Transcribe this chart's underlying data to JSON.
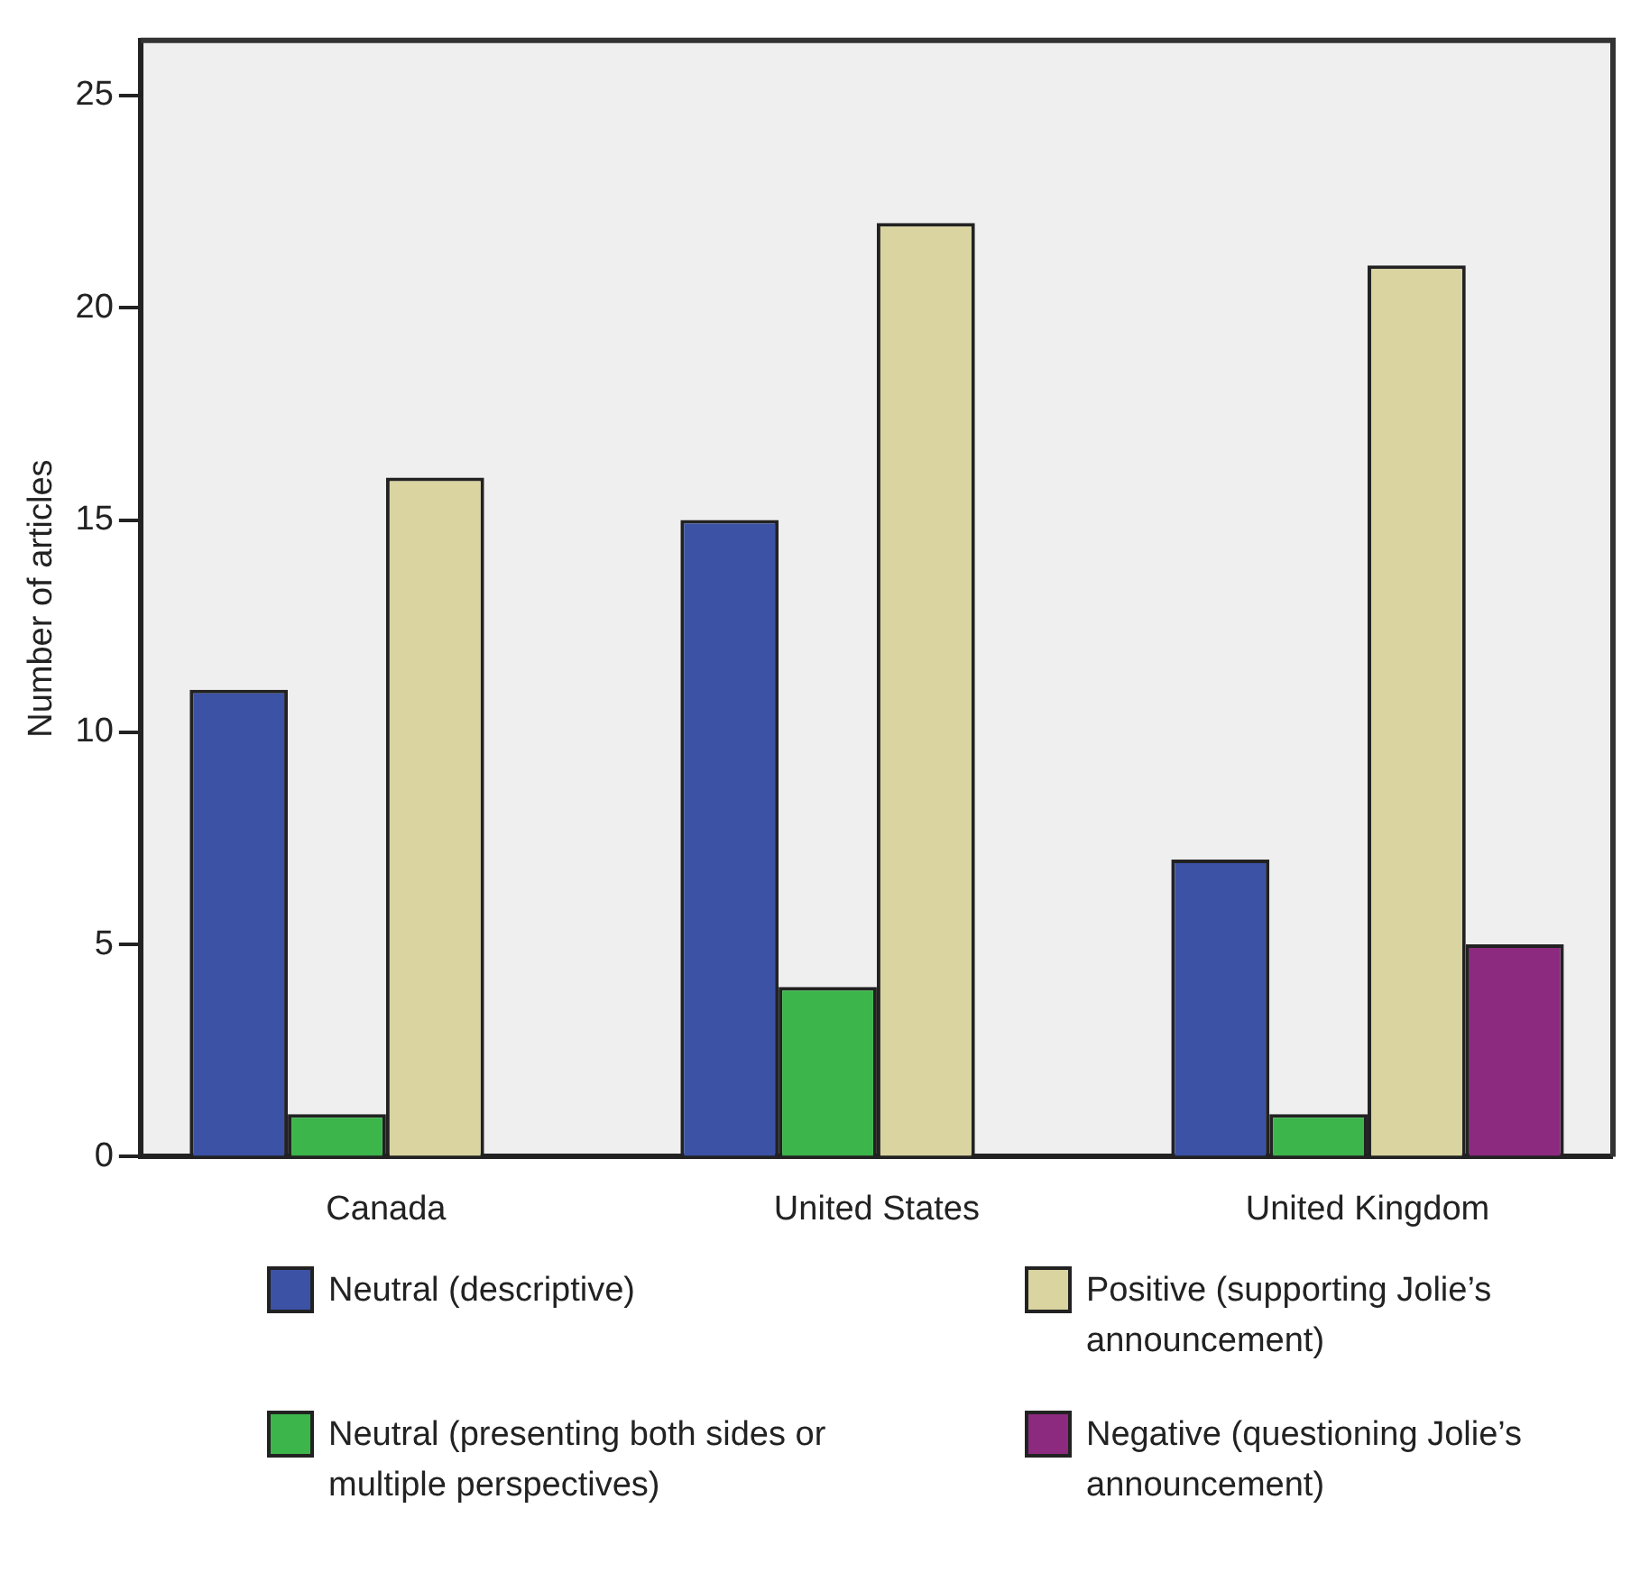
{
  "chart_data": {
    "type": "bar",
    "ylabel": "Number of articles",
    "categories": [
      "Canada",
      "United States",
      "United Kingdom"
    ],
    "series": [
      {
        "name": "Neutral (descriptive)",
        "color": "#3b52a5",
        "values": [
          11,
          15,
          7
        ]
      },
      {
        "name": "Neutral (presenting both sides or multiple perspectives)",
        "color": "#3cb54b",
        "values": [
          1,
          4,
          1
        ]
      },
      {
        "name": "Positive (supporting Jolie’s announcement)",
        "color": "#d9d4a0",
        "values": [
          16,
          22,
          21
        ]
      },
      {
        "name": "Negative (questioning Jolie’s announcement)",
        "color": "#8b2a7f",
        "values": [
          null,
          null,
          5
        ]
      }
    ],
    "ylim": [
      0,
      26.3
    ],
    "yticks": [
      0,
      5,
      10,
      15,
      20,
      25
    ],
    "grid": false,
    "legend": "bottom"
  }
}
